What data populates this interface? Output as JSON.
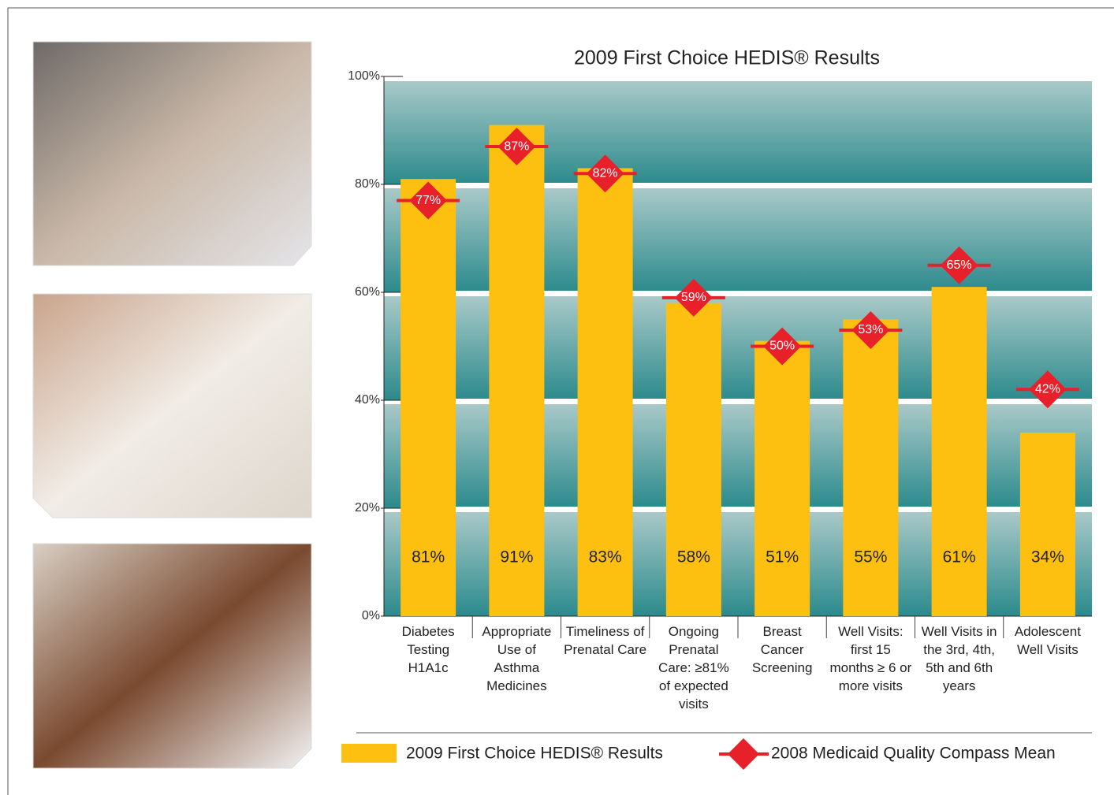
{
  "chart_data": {
    "type": "bar",
    "title": "2009 First Choice HEDIS® Results",
    "categories": [
      "Diabetes Testing H1A1c",
      "Appropriate Use of Asthma Medicines",
      "Timeliness of Prenatal Care",
      "Ongoing Prenatal Care: ≥81% of expected visits",
      "Breast Cancer Screening",
      "Well Visits: first 15 months ≥ 6 or more visits",
      "Well Visits in the 3rd, 4th, 5th and 6th years",
      "Adolescent Well Visits"
    ],
    "series": [
      {
        "name": "2009 First Choice HEDIS® Results",
        "type": "bar",
        "color": "#fdc010",
        "values": [
          81,
          91,
          83,
          58,
          51,
          55,
          61,
          34
        ],
        "value_labels": [
          "81%",
          "91%",
          "83%",
          "58%",
          "51%",
          "55%",
          "61%",
          "34%"
        ]
      },
      {
        "name": "2008 Medicaid Quality Compass Mean",
        "type": "marker",
        "color": "#e8202a",
        "values": [
          77,
          87,
          82,
          59,
          50,
          53,
          65,
          42
        ],
        "value_labels": [
          "77%",
          "87%",
          "82%",
          "59%",
          "50%",
          "53%",
          "65%",
          "42%"
        ]
      }
    ],
    "ylim": [
      0,
      100
    ],
    "yticks": [
      {
        "value": 0,
        "label": "0%"
      },
      {
        "value": 20,
        "label": "20%"
      },
      {
        "value": 40,
        "label": "40%"
      },
      {
        "value": 60,
        "label": "60%"
      },
      {
        "value": 80,
        "label": "80%"
      },
      {
        "value": 100,
        "label": "100%"
      }
    ],
    "grid": true
  }
}
